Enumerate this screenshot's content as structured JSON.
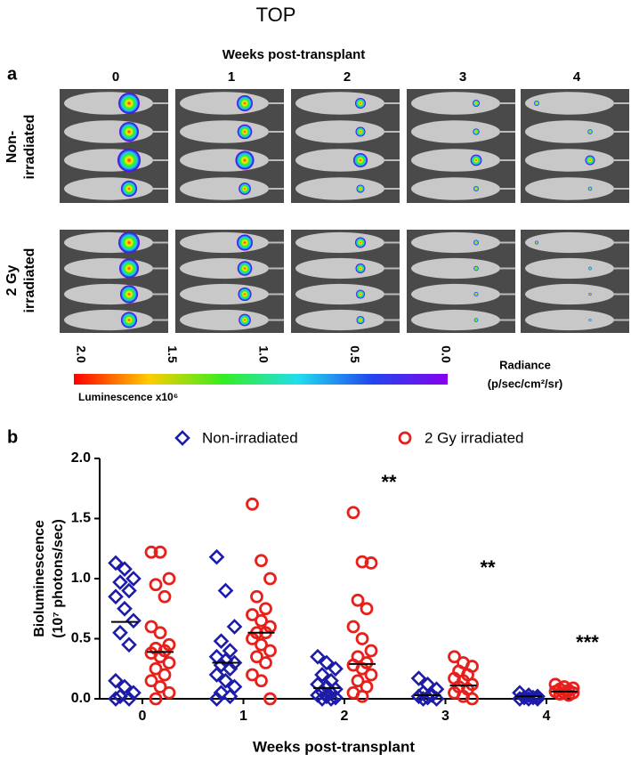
{
  "header": "TOP",
  "panel_a": {
    "label": "a",
    "axis_title": "Weeks post-transplant",
    "columns": [
      "0",
      "1",
      "2",
      "3",
      "4"
    ],
    "rows": [
      "Non-",
      "irradiated",
      "2 Gy",
      "irradiated"
    ],
    "colorbar": {
      "ticks": [
        {
          "value": 2,
          "label": "2.0"
        },
        {
          "value": 1.5,
          "label": "1.5"
        },
        {
          "value": 1,
          "label": "1.0"
        },
        {
          "value": 0.5,
          "label": "0.5"
        },
        {
          "value": 0,
          "label": "0.0"
        }
      ],
      "lim": [
        2,
        0
      ],
      "caption": "Luminescence  x10⁶",
      "unit_title": "Radiance",
      "unit": "(p/sec/cm²/sr)"
    }
  },
  "panel_b_label": "b",
  "chart_data": {
    "type": "scatter",
    "xlabel": "Weeks post-transplant",
    "ylabel": [
      "Bioluminescence",
      "(10⁷ photons/sec)"
    ],
    "categories": [
      "0",
      "1",
      "2",
      "3",
      "4"
    ],
    "ylim": [
      0,
      2
    ],
    "yticks": [
      {
        "value": 0,
        "label": "0.0"
      },
      {
        "value": 0.5,
        "label": "0.5"
      },
      {
        "value": 1,
        "label": "1.0"
      },
      {
        "value": 1.5,
        "label": "1.5"
      },
      {
        "value": 2,
        "label": "2.0"
      }
    ],
    "annotations": [
      "**",
      "**",
      "***"
    ],
    "series": [
      {
        "name": "Non-irradiated",
        "color": "#1c1ca8",
        "marker": "diamond",
        "values": [
          [
            1.13,
            1.08,
            1.0,
            0.97,
            0.9,
            0.85,
            0.75,
            0.65,
            0.55,
            0.45,
            0.15,
            0.1,
            0.05,
            0.02,
            0.0,
            0.0
          ],
          [
            1.18,
            0.9,
            0.6,
            0.48,
            0.4,
            0.35,
            0.32,
            0.3,
            0.28,
            0.25,
            0.2,
            0.15,
            0.1,
            0.05,
            0.02,
            0.0
          ],
          [
            0.35,
            0.3,
            0.25,
            0.2,
            0.15,
            0.12,
            0.1,
            0.08,
            0.06,
            0.05,
            0.03,
            0.02,
            0.01,
            0.0,
            0.0
          ],
          [
            0.17,
            0.12,
            0.08,
            0.05,
            0.03,
            0.02,
            0.01,
            0.0,
            0.0
          ],
          [
            0.05,
            0.03,
            0.02,
            0.01,
            0.01,
            0.0,
            0.0,
            0.0
          ]
        ],
        "medians": [
          0.64,
          0.3,
          0.09,
          0.03,
          0.02
        ]
      },
      {
        "name": "2 Gy irradiated",
        "color": "#e8201c",
        "marker": "circle",
        "values": [
          [
            1.22,
            1.22,
            1.0,
            0.95,
            0.85,
            0.6,
            0.55,
            0.45,
            0.42,
            0.4,
            0.38,
            0.35,
            0.3,
            0.25,
            0.2,
            0.15,
            0.1,
            0.05,
            0.0
          ],
          [
            1.62,
            1.15,
            1.0,
            0.85,
            0.75,
            0.7,
            0.65,
            0.6,
            0.55,
            0.55,
            0.5,
            0.45,
            0.4,
            0.35,
            0.3,
            0.2,
            0.15,
            0.0
          ],
          [
            1.55,
            1.14,
            1.13,
            0.82,
            0.75,
            0.6,
            0.5,
            0.4,
            0.35,
            0.3,
            0.28,
            0.25,
            0.2,
            0.15,
            0.1,
            0.05,
            0.02
          ],
          [
            0.35,
            0.3,
            0.27,
            0.23,
            0.2,
            0.17,
            0.15,
            0.12,
            0.1,
            0.08,
            0.05,
            0.02,
            0.0
          ],
          [
            0.12,
            0.1,
            0.09,
            0.08,
            0.07,
            0.06,
            0.05,
            0.05,
            0.04,
            0.03
          ]
        ],
        "medians": [
          0.39,
          0.55,
          0.29,
          0.11,
          0.06
        ]
      }
    ]
  }
}
